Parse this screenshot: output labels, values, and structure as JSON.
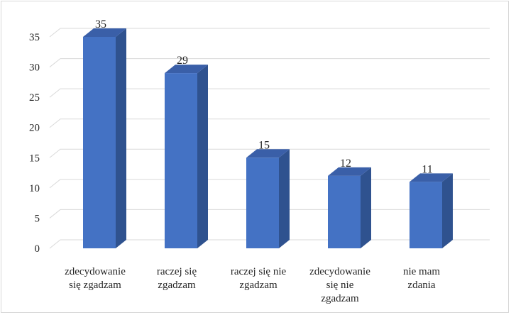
{
  "chart_data": {
    "type": "bar",
    "style": "3d-column",
    "categories": [
      [
        "zdecydowanie",
        "się zgadzam"
      ],
      [
        "raczej się",
        "zgadzam"
      ],
      [
        "raczej się nie",
        "zgadzam"
      ],
      [
        "zdecydowanie",
        "się nie",
        "zgadzam"
      ],
      [
        "nie mam",
        "zdania"
      ]
    ],
    "values": [
      35,
      29,
      15,
      12,
      11
    ],
    "data_labels": [
      "35",
      "29",
      "15",
      "12",
      "11"
    ],
    "yticks": [
      "0",
      "5",
      "10",
      "15",
      "20",
      "25",
      "30",
      "35"
    ],
    "ylim": [
      0,
      35
    ],
    "ystep": 5,
    "grid": true,
    "legend": "none",
    "colors": {
      "bar_front": "#4472c4",
      "bar_side": "#2f528f",
      "bar_top": "#3a5fa8",
      "grid": "#d9d9d9"
    }
  }
}
